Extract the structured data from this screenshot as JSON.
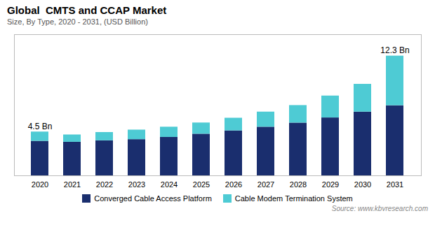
{
  "chart_data": {
    "type": "bar",
    "stacked": true,
    "title": "Global  CMTS and CCAP Market",
    "subtitle": "Size, By Type, 2020 - 2031, (USD Billion)",
    "categories": [
      "2020",
      "2021",
      "2022",
      "2023",
      "2024",
      "2025",
      "2026",
      "2027",
      "2028",
      "2029",
      "2030",
      "2031"
    ],
    "series": [
      {
        "name": "Converged Cable Access Platform",
        "color": "#1a2e6e",
        "values": [
          3.55,
          3.45,
          3.6,
          3.72,
          3.95,
          4.28,
          4.62,
          5.0,
          5.42,
          5.95,
          6.55,
          7.2
        ]
      },
      {
        "name": "Cable Modem Termination System",
        "color": "#4ecbd4",
        "values": [
          0.95,
          0.75,
          0.85,
          0.98,
          1.05,
          1.15,
          1.3,
          1.55,
          1.8,
          2.25,
          2.85,
          5.1
        ]
      }
    ],
    "ylim": [
      0,
      14.5
    ],
    "tick_labels": "x",
    "legend": "bottom",
    "annotations": [
      "4.5 Bn",
      "12.3 Bn"
    ],
    "source": "Source: www.kbvresearch.com"
  }
}
